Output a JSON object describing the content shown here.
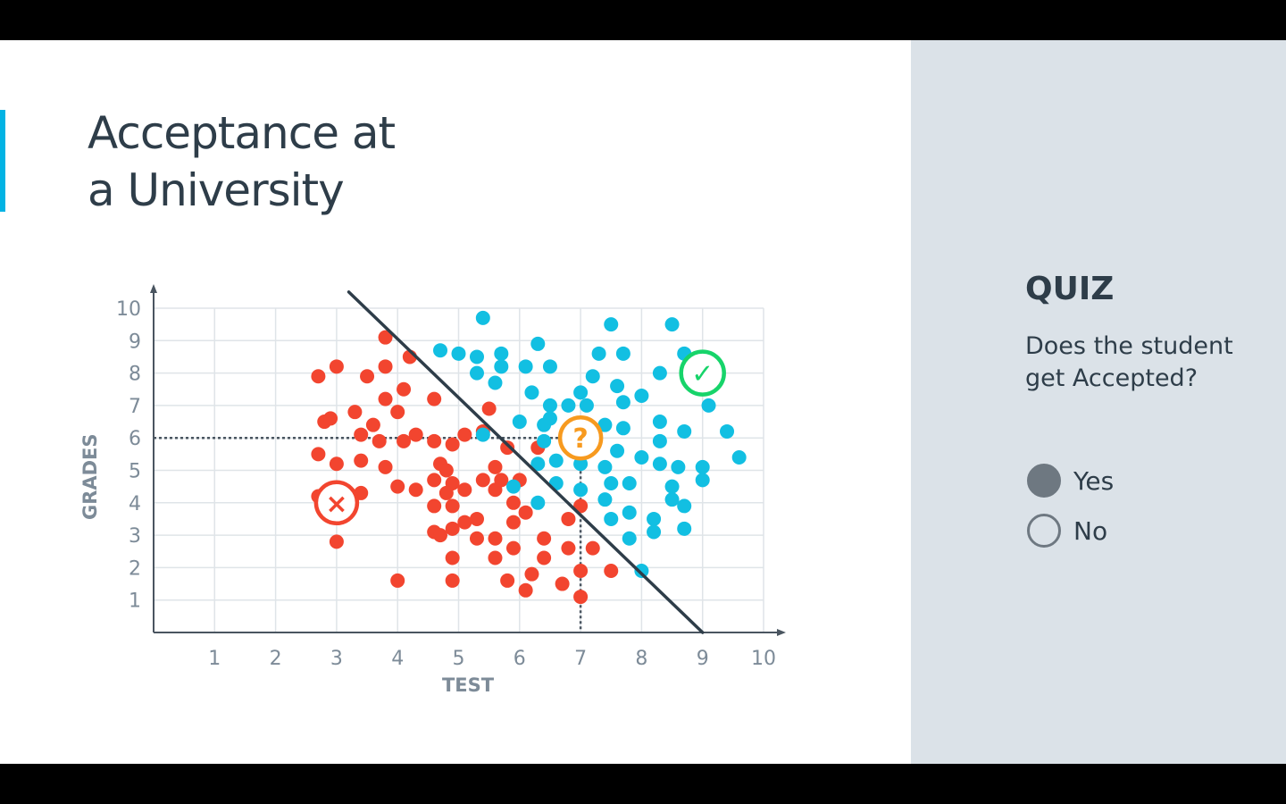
{
  "slide": {
    "title_line1": "Acceptance at",
    "title_line2": "a University",
    "accent_color": "#02b3e4"
  },
  "quiz": {
    "heading": "QUIZ",
    "question": "Does the student get Accepted?",
    "options": [
      {
        "label": "Yes",
        "selected": true
      },
      {
        "label": "No",
        "selected": false
      }
    ]
  },
  "chart_data": {
    "type": "scatter",
    "xlabel": "TEST",
    "ylabel": "GRADES",
    "xlim": [
      0,
      10
    ],
    "ylim": [
      0,
      10
    ],
    "x_ticks": [
      "1",
      "2",
      "3",
      "4",
      "5",
      "6",
      "7",
      "8",
      "9",
      "10"
    ],
    "y_ticks": [
      "1",
      "2",
      "3",
      "4",
      "5",
      "6",
      "7",
      "8",
      "9",
      "10"
    ],
    "grid": true,
    "boundary_line": {
      "x1": 3.2,
      "y1": 10.5,
      "x2": 9.0,
      "y2": 0
    },
    "query_point": {
      "x": 7,
      "y": 6,
      "symbol": "?",
      "color": "#f79a1f"
    },
    "reject_marker": {
      "x": 3,
      "y": 4,
      "symbol": "×",
      "color": "#f2452f"
    },
    "accept_marker": {
      "x": 9,
      "y": 8,
      "symbol": "✓",
      "color": "#17d46a"
    },
    "colors": {
      "rejected": "#f2452f",
      "accepted": "#12bfe2",
      "axis": "#4a5560",
      "grid": "#dfe4e8",
      "boundary": "#2e3d49",
      "tick_text": "#7d8b98"
    },
    "series": [
      {
        "name": "rejected",
        "points": [
          [
            2.7,
            7.9
          ],
          [
            3.0,
            8.2
          ],
          [
            3.5,
            7.9
          ],
          [
            3.8,
            9.1
          ],
          [
            3.8,
            8.2
          ],
          [
            4.2,
            8.5
          ],
          [
            4.1,
            7.5
          ],
          [
            3.8,
            7.2
          ],
          [
            4.0,
            6.8
          ],
          [
            2.8,
            6.5
          ],
          [
            2.9,
            6.6
          ],
          [
            3.3,
            6.8
          ],
          [
            3.6,
            6.4
          ],
          [
            3.4,
            6.1
          ],
          [
            3.7,
            5.9
          ],
          [
            4.1,
            5.9
          ],
          [
            4.3,
            6.1
          ],
          [
            4.6,
            7.2
          ],
          [
            4.6,
            5.9
          ],
          [
            4.9,
            5.8
          ],
          [
            5.1,
            6.1
          ],
          [
            2.7,
            5.5
          ],
          [
            3.0,
            5.2
          ],
          [
            3.4,
            5.3
          ],
          [
            3.8,
            5.1
          ],
          [
            4.7,
            5.2
          ],
          [
            4.8,
            5.0
          ],
          [
            4.6,
            4.7
          ],
          [
            4.9,
            4.6
          ],
          [
            5.1,
            4.4
          ],
          [
            4.0,
            4.5
          ],
          [
            4.3,
            4.4
          ],
          [
            3.4,
            4.3
          ],
          [
            2.7,
            4.2
          ],
          [
            4.6,
            3.9
          ],
          [
            4.8,
            4.3
          ],
          [
            4.9,
            3.9
          ],
          [
            5.1,
            3.4
          ],
          [
            5.3,
            3.5
          ],
          [
            4.9,
            3.2
          ],
          [
            4.6,
            3.1
          ],
          [
            4.7,
            3.0
          ],
          [
            5.3,
            2.9
          ],
          [
            5.6,
            2.9
          ],
          [
            5.4,
            4.7
          ],
          [
            5.6,
            4.4
          ],
          [
            5.7,
            4.7
          ],
          [
            5.6,
            5.1
          ],
          [
            5.8,
            5.7
          ],
          [
            5.5,
            6.9
          ],
          [
            6.0,
            4.7
          ],
          [
            5.9,
            4.0
          ],
          [
            6.1,
            3.7
          ],
          [
            5.9,
            3.4
          ],
          [
            6.4,
            2.9
          ],
          [
            5.6,
            2.3
          ],
          [
            5.9,
            2.6
          ],
          [
            6.4,
            2.3
          ],
          [
            6.8,
            3.5
          ],
          [
            6.8,
            2.6
          ],
          [
            7.0,
            3.9
          ],
          [
            7.2,
            2.6
          ],
          [
            7.0,
            1.9
          ],
          [
            7.5,
            1.9
          ],
          [
            6.2,
            1.8
          ],
          [
            6.1,
            1.3
          ],
          [
            6.7,
            1.5
          ],
          [
            7.0,
            1.1
          ],
          [
            5.8,
            1.6
          ],
          [
            4.9,
            1.6
          ],
          [
            4.0,
            1.6
          ],
          [
            4.9,
            2.3
          ],
          [
            3.0,
            2.8
          ],
          [
            5.4,
            6.2
          ],
          [
            6.3,
            5.7
          ]
        ]
      },
      {
        "name": "accepted",
        "points": [
          [
            5.4,
            9.7
          ],
          [
            4.7,
            8.7
          ],
          [
            5.0,
            8.6
          ],
          [
            5.3,
            8.5
          ],
          [
            5.7,
            8.6
          ],
          [
            6.3,
            8.9
          ],
          [
            7.5,
            9.5
          ],
          [
            8.5,
            9.5
          ],
          [
            7.3,
            8.6
          ],
          [
            7.7,
            8.6
          ],
          [
            8.7,
            8.6
          ],
          [
            5.3,
            8.0
          ],
          [
            5.6,
            7.7
          ],
          [
            5.7,
            8.2
          ],
          [
            6.1,
            8.2
          ],
          [
            6.5,
            8.2
          ],
          [
            6.2,
            7.4
          ],
          [
            6.5,
            7.0
          ],
          [
            6.8,
            7.0
          ],
          [
            7.0,
            7.4
          ],
          [
            7.2,
            7.9
          ],
          [
            7.1,
            7.0
          ],
          [
            7.6,
            7.6
          ],
          [
            7.7,
            7.1
          ],
          [
            8.0,
            7.3
          ],
          [
            8.3,
            8.0
          ],
          [
            9.1,
            7.0
          ],
          [
            6.0,
            6.5
          ],
          [
            6.4,
            6.4
          ],
          [
            6.5,
            6.6
          ],
          [
            6.4,
            5.9
          ],
          [
            6.8,
            6.2
          ],
          [
            7.4,
            6.4
          ],
          [
            7.7,
            6.3
          ],
          [
            8.3,
            6.5
          ],
          [
            8.3,
            5.9
          ],
          [
            8.7,
            6.2
          ],
          [
            9.4,
            6.2
          ],
          [
            9.6,
            5.4
          ],
          [
            5.4,
            6.1
          ],
          [
            6.3,
            5.2
          ],
          [
            6.6,
            5.3
          ],
          [
            7.0,
            5.2
          ],
          [
            7.4,
            5.1
          ],
          [
            7.6,
            5.6
          ],
          [
            8.0,
            5.4
          ],
          [
            8.3,
            5.2
          ],
          [
            8.6,
            5.1
          ],
          [
            9.0,
            5.1
          ],
          [
            9.0,
            4.7
          ],
          [
            6.6,
            4.6
          ],
          [
            7.0,
            4.4
          ],
          [
            7.5,
            4.6
          ],
          [
            7.8,
            4.6
          ],
          [
            8.5,
            4.5
          ],
          [
            8.5,
            4.1
          ],
          [
            8.7,
            3.9
          ],
          [
            7.4,
            4.1
          ],
          [
            7.5,
            3.5
          ],
          [
            7.8,
            3.7
          ],
          [
            8.2,
            3.5
          ],
          [
            8.2,
            3.1
          ],
          [
            8.7,
            3.2
          ],
          [
            7.8,
            2.9
          ],
          [
            8.0,
            1.9
          ],
          [
            5.9,
            4.5
          ],
          [
            6.3,
            4.0
          ]
        ]
      }
    ]
  }
}
